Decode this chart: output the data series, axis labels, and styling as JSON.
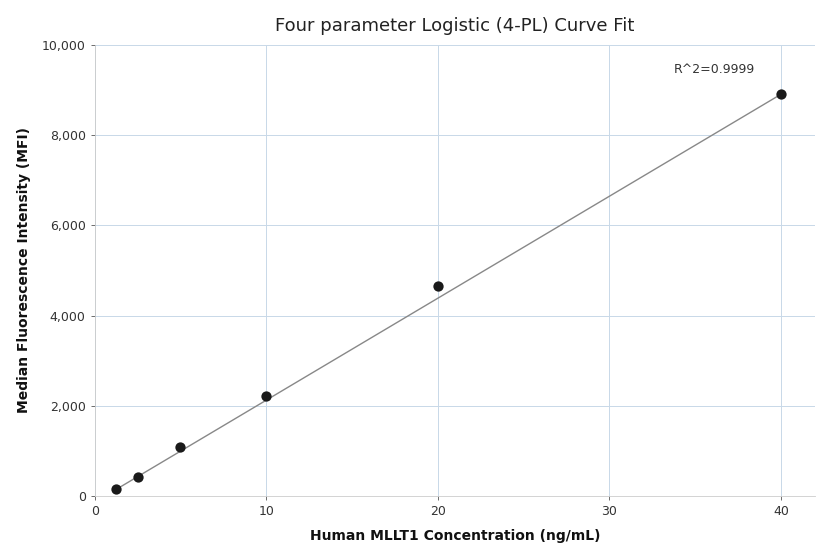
{
  "title": "Four parameter Logistic (4-PL) Curve Fit",
  "xlabel": "Human MLLT1 Concentration (ng/mL)",
  "ylabel": "Median Fluorescence Intensity (MFI)",
  "x_data": [
    1.25,
    2.5,
    5.0,
    10.0,
    20.0,
    40.0
  ],
  "y_data": [
    150,
    430,
    1100,
    2220,
    4650,
    8900
  ],
  "xlim": [
    0,
    42
  ],
  "ylim": [
    0,
    10000
  ],
  "xticks": [
    0,
    10,
    20,
    30,
    40
  ],
  "yticks": [
    0,
    2000,
    4000,
    6000,
    8000,
    10000
  ],
  "r_squared_text": "R^2=0.9999",
  "dot_color": "#1a1a1a",
  "line_color": "#888888",
  "dot_size": 55,
  "grid_color": "#c8d8e8",
  "background_color": "#ffffff",
  "title_fontsize": 13,
  "label_fontsize": 10,
  "tick_fontsize": 9,
  "annotation_fontsize": 9
}
